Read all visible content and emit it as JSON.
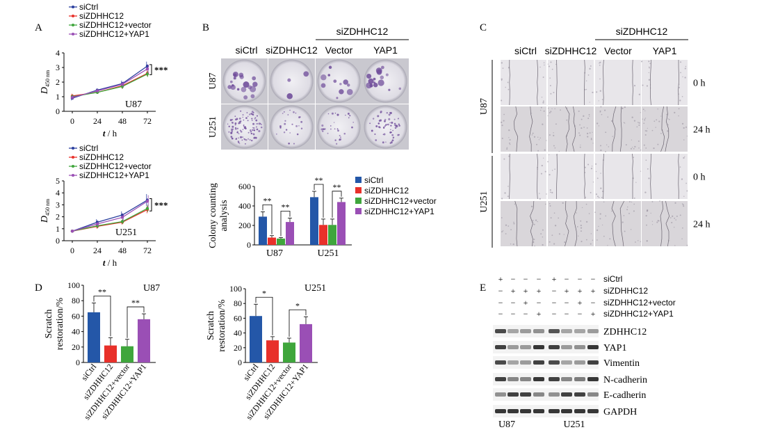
{
  "panel_labels": {
    "a": "A",
    "b": "B",
    "c": "C",
    "d": "D",
    "e": "E"
  },
  "chart_data": [
    {
      "id": "A-U87",
      "type": "line",
      "annotation": "U87",
      "xlabel_var": "t",
      "xlabel_unit": " / h",
      "ylabel_var": "D",
      "ylabel_sub": "450 nm",
      "x": [
        0,
        24,
        48,
        72
      ],
      "xlim": [
        0,
        72
      ],
      "ylim": [
        0,
        4
      ],
      "yticks": [
        0,
        1,
        2,
        3,
        4
      ],
      "significance": "***",
      "legend_position": "top-left",
      "series": [
        {
          "name": "siCtrl",
          "color": "#2a3f9e",
          "values": [
            0.9,
            1.45,
            1.9,
            3.1
          ],
          "err": [
            0.15,
            0.1,
            0.2,
            0.3
          ]
        },
        {
          "name": "siZDHHC12",
          "color": "#e8302a",
          "values": [
            1.05,
            1.3,
            1.75,
            2.6
          ],
          "err": [
            0.15,
            0.1,
            0.2,
            0.2
          ]
        },
        {
          "name": "siZDHHC12+vector",
          "color": "#3fa63c",
          "values": [
            1.0,
            1.3,
            1.7,
            2.55
          ],
          "err": [
            0.15,
            0.1,
            0.15,
            0.2
          ]
        },
        {
          "name": "siZDHHC12+YAP1",
          "color": "#9a4fb5",
          "values": [
            0.95,
            1.4,
            1.85,
            2.9
          ],
          "err": [
            0.15,
            0.1,
            0.2,
            0.3
          ]
        }
      ]
    },
    {
      "id": "A-U251",
      "type": "line",
      "annotation": "U251",
      "xlabel_var": "t",
      "xlabel_unit": " / h",
      "ylabel_var": "D",
      "ylabel_sub": "450 nm",
      "x": [
        0,
        24,
        48,
        72
      ],
      "xlim": [
        0,
        72
      ],
      "ylim": [
        0,
        5
      ],
      "yticks": [
        0,
        1,
        2,
        3,
        4,
        5
      ],
      "significance": "***",
      "legend_position": "top-left",
      "series": [
        {
          "name": "siCtrl",
          "color": "#2a3f9e",
          "values": [
            0.8,
            1.55,
            2.15,
            3.4
          ],
          "err": [
            0.1,
            0.25,
            0.3,
            0.5
          ]
        },
        {
          "name": "siZDHHC12",
          "color": "#e8302a",
          "values": [
            0.8,
            1.2,
            1.55,
            2.6
          ],
          "err": [
            0.1,
            0.2,
            0.2,
            0.3
          ]
        },
        {
          "name": "siZDHHC12+vector",
          "color": "#3fa63c",
          "values": [
            0.8,
            1.25,
            1.6,
            2.7
          ],
          "err": [
            0.1,
            0.2,
            0.2,
            0.3
          ]
        },
        {
          "name": "siZDHHC12+YAP1",
          "color": "#9a4fb5",
          "values": [
            0.8,
            1.4,
            1.95,
            3.3
          ],
          "err": [
            0.1,
            0.2,
            0.3,
            0.5
          ]
        }
      ]
    },
    {
      "id": "B-colony",
      "type": "bar",
      "ylabel": "Colony counting analysis",
      "categories": [
        "U87",
        "U251"
      ],
      "ylim": [
        0,
        600
      ],
      "yticks": [
        0,
        200,
        400,
        600
      ],
      "legend_position": "right",
      "series": [
        {
          "name": "siCtrl",
          "color": "#2457a8",
          "values": [
            290,
            490
          ],
          "err": [
            50,
            60
          ]
        },
        {
          "name": "siZDHHC12",
          "color": "#e8302a",
          "values": [
            75,
            205
          ],
          "err": [
            20,
            60
          ]
        },
        {
          "name": "siZDHHC12+vector",
          "color": "#3fa63c",
          "values": [
            65,
            205
          ],
          "err": [
            10,
            60
          ]
        },
        {
          "name": "siZDHHC12+YAP1",
          "color": "#9a4fb5",
          "values": [
            235,
            440
          ],
          "err": [
            40,
            40
          ]
        }
      ],
      "significance": [
        {
          "group": 0,
          "from": 0,
          "to": 1,
          "label": "**"
        },
        {
          "group": 0,
          "from": 2,
          "to": 3,
          "label": "**"
        },
        {
          "group": 1,
          "from": 0,
          "to": 1,
          "label": "**"
        },
        {
          "group": 1,
          "from": 2,
          "to": 3,
          "label": "**"
        }
      ]
    },
    {
      "id": "D-U87",
      "type": "bar",
      "title": "U87",
      "ylabel": "Scratch restoration/%",
      "categories": [
        "siCtrl",
        "siZDHHC12",
        "siZDHHC12+vector",
        "siZDHHC12+YAP1"
      ],
      "colors": [
        "#2457a8",
        "#e8302a",
        "#3fa63c",
        "#9a4fb5"
      ],
      "values": [
        65,
        22,
        21,
        56
      ],
      "err": [
        12,
        10,
        9,
        7
      ],
      "ylim": [
        0,
        100
      ],
      "yticks": [
        0,
        20,
        40,
        60,
        80,
        100
      ],
      "significance": [
        {
          "from": 0,
          "to": 1,
          "label": "**"
        },
        {
          "from": 2,
          "to": 3,
          "label": "**"
        }
      ]
    },
    {
      "id": "D-U251",
      "type": "bar",
      "title": "U251",
      "ylabel": "Scratch restoration/%",
      "categories": [
        "siCtrl",
        "siZDHHC12",
        "siZDHHC12+vector",
        "siZDHHC12+YAP1"
      ],
      "colors": [
        "#2457a8",
        "#e8302a",
        "#3fa63c",
        "#9a4fb5"
      ],
      "values": [
        63,
        30,
        27,
        52
      ],
      "err": [
        16,
        5,
        6,
        10
      ],
      "ylim": [
        0,
        100
      ],
      "yticks": [
        0,
        20,
        40,
        60,
        80,
        100
      ],
      "significance": [
        {
          "from": 0,
          "to": 1,
          "label": "*"
        },
        {
          "from": 2,
          "to": 3,
          "label": "*"
        }
      ]
    }
  ],
  "panelB": {
    "group_label": "siZDHHC12",
    "columns": [
      "siCtrl",
      "siZDHHC12",
      "Vector",
      "YAP1"
    ],
    "rows": [
      "U87",
      "U251"
    ],
    "colony_density": [
      [
        0.8,
        0.15,
        0.5,
        0.7
      ],
      [
        0.9,
        0.2,
        0.25,
        0.5
      ]
    ]
  },
  "panelC": {
    "group_label": "siZDHHC12",
    "columns": [
      "siCtrl",
      "siZDHHC12",
      "Vector",
      "YAP1"
    ],
    "cell_lines": [
      "U87",
      "U251"
    ],
    "times": [
      "0 h",
      "24 h"
    ]
  },
  "panelE": {
    "conditions": [
      {
        "label": "siCtrl",
        "signs": [
          "+",
          "−",
          "−",
          "−",
          "+",
          "−",
          "−",
          "−"
        ]
      },
      {
        "label": "siZDHHC12",
        "signs": [
          "−",
          "+",
          "+",
          "+",
          "−",
          "+",
          "+",
          "+"
        ]
      },
      {
        "label": "siZDHHC12+vector",
        "signs": [
          "−",
          "−",
          "+",
          "−",
          "−",
          "−",
          "+",
          "−"
        ]
      },
      {
        "label": "siZDHHC12+YAP1",
        "signs": [
          "−",
          "−",
          "−",
          "+",
          "−",
          "−",
          "−",
          "+"
        ]
      }
    ],
    "proteins": [
      {
        "name": "ZDHHC12",
        "intensity": [
          0.8,
          0.35,
          0.4,
          0.45,
          0.75,
          0.35,
          0.35,
          0.4
        ]
      },
      {
        "name": "YAP1",
        "intensity": [
          0.85,
          0.4,
          0.4,
          0.9,
          0.85,
          0.4,
          0.45,
          0.9
        ]
      },
      {
        "name": "Vimentin",
        "intensity": [
          0.8,
          0.35,
          0.4,
          0.85,
          0.8,
          0.35,
          0.4,
          0.85
        ]
      },
      {
        "name": "N-cadherin",
        "intensity": [
          0.85,
          0.5,
          0.5,
          0.9,
          0.85,
          0.5,
          0.55,
          0.9
        ]
      },
      {
        "name": "E-cadherin",
        "intensity": [
          0.45,
          0.85,
          0.85,
          0.5,
          0.45,
          0.85,
          0.85,
          0.5
        ]
      },
      {
        "name": "GAPDH",
        "intensity": [
          0.9,
          0.9,
          0.9,
          0.9,
          0.9,
          0.9,
          0.9,
          0.9
        ]
      }
    ],
    "cell_lines": [
      "U87",
      "U251"
    ]
  }
}
